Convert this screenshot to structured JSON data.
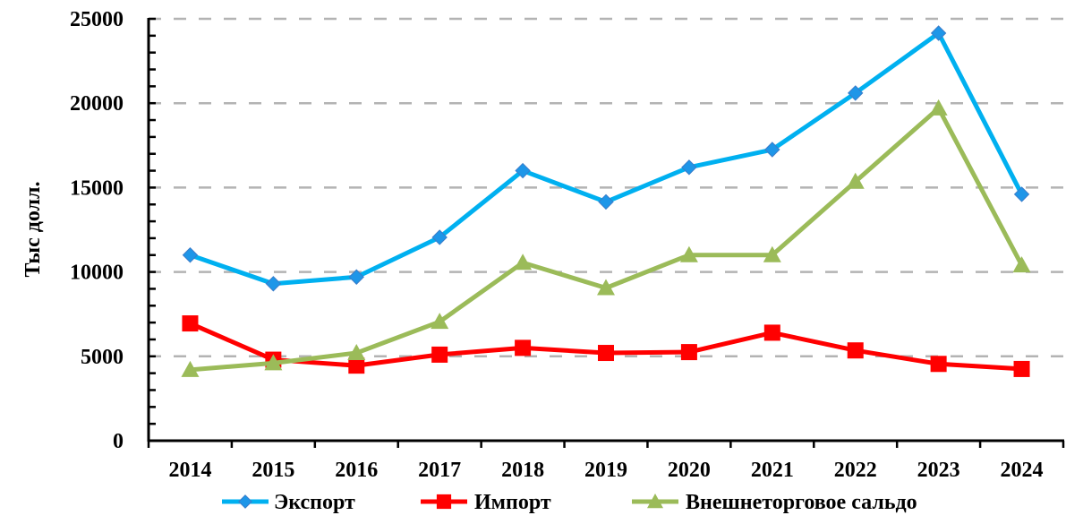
{
  "chart_data": {
    "type": "line",
    "title": "",
    "xlabel": "",
    "ylabel": "Тыс долл.",
    "ylim": [
      0,
      25000
    ],
    "y_major_step": 5000,
    "y_minor_step": 1000,
    "y_ticks": [
      "0",
      "5000",
      "10000",
      "15000",
      "20000",
      "25000"
    ],
    "grid": true,
    "legend_position": "bottom",
    "categories": [
      "2014",
      "2015",
      "2016",
      "2017",
      "2018",
      "2019",
      "2020",
      "2021",
      "2022",
      "2023",
      "2024"
    ],
    "series": [
      {
        "name": "Экспорт",
        "color": "#00B0F0",
        "marker": "diamond",
        "marker_color": "#1E96E8",
        "values": [
          11000,
          9300,
          9700,
          12050,
          16000,
          14150,
          16200,
          17250,
          20600,
          24150,
          14600
        ]
      },
      {
        "name": "Импорт",
        "color": "#FF0000",
        "marker": "square",
        "marker_color": "#FF0000",
        "values": [
          6950,
          4800,
          4450,
          5100,
          5500,
          5200,
          5250,
          6400,
          5350,
          4550,
          4250
        ]
      },
      {
        "name": "Внешнеторговое сальдо",
        "color": "#9BBB59",
        "marker": "triangle",
        "marker_color": "#9BBB59",
        "values": [
          4200,
          4600,
          5200,
          7050,
          10550,
          9050,
          11000,
          11000,
          15350,
          19700,
          10400
        ]
      }
    ]
  }
}
